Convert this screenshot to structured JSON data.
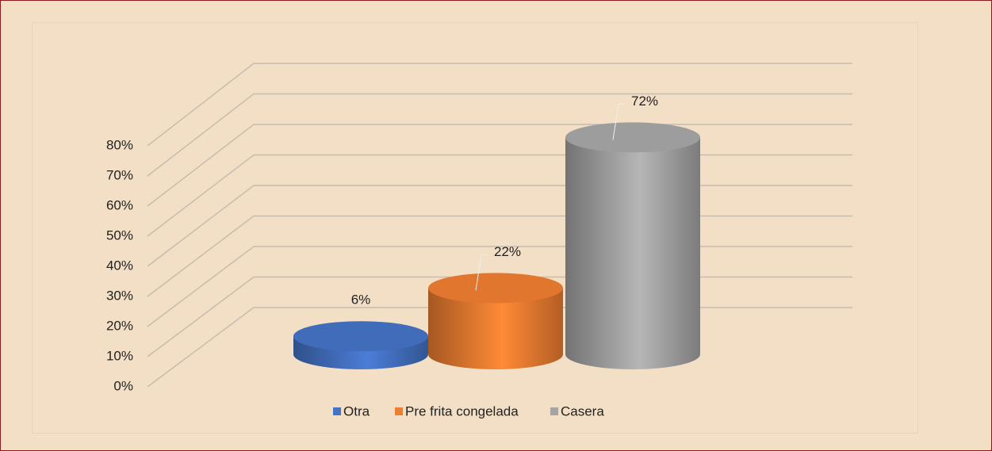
{
  "chart_data": {
    "type": "bar",
    "categories": [
      null
    ],
    "series": [
      {
        "name": "Otra",
        "color": "#4472c4",
        "values": [
          6
        ],
        "value_labels": [
          "6%"
        ]
      },
      {
        "name": "Pre frita congelada",
        "color": "#ed7d31",
        "values": [
          22
        ],
        "value_labels": [
          "22%"
        ]
      },
      {
        "name": "Casera",
        "color": "#a5a5a5",
        "values": [
          72
        ],
        "value_labels": [
          "72%"
        ]
      }
    ],
    "ylim": [
      0,
      80
    ],
    "yticks": [
      {
        "value": 0,
        "label": "0%"
      },
      {
        "value": 10,
        "label": "10%"
      },
      {
        "value": 20,
        "label": "20%"
      },
      {
        "value": 30,
        "label": "30%"
      },
      {
        "value": 40,
        "label": "40%"
      },
      {
        "value": 50,
        "label": "50%"
      },
      {
        "value": 60,
        "label": "60%"
      },
      {
        "value": 70,
        "label": "70%"
      },
      {
        "value": 80,
        "label": "80%"
      }
    ],
    "grid": true,
    "legend": "bottom"
  }
}
